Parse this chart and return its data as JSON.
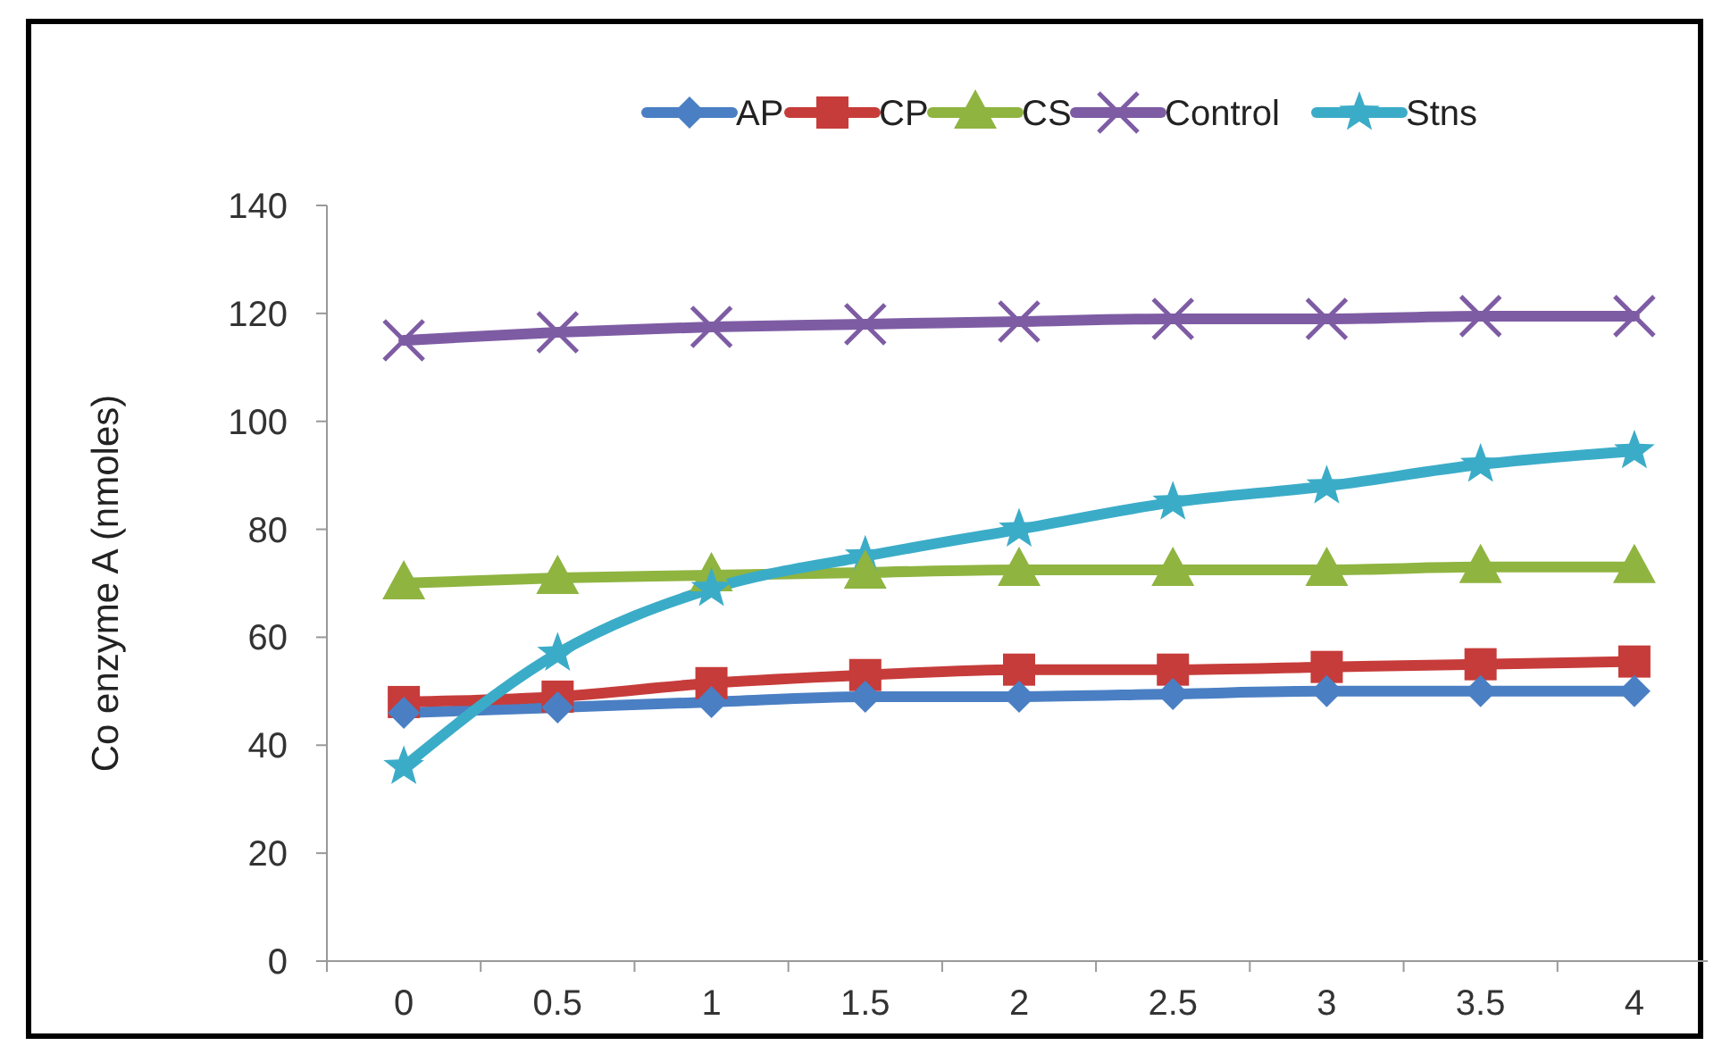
{
  "chart_data": {
    "type": "line",
    "ylabel": "Co enzyme A (nmoles)",
    "categories": [
      "0",
      "0.5",
      "1",
      "1.5",
      "2",
      "2.5",
      "3",
      "3.5",
      "4"
    ],
    "ylim": [
      0,
      140
    ],
    "yticks": [
      0,
      20,
      40,
      60,
      80,
      100,
      120,
      140
    ],
    "grid": false,
    "legend": "top",
    "series": [
      {
        "name": "AP",
        "color": "#4a7fc4",
        "marker": "diamond",
        "values": [
          46,
          47,
          48,
          49,
          49,
          49.5,
          50,
          50,
          50
        ]
      },
      {
        "name": "CP",
        "color": "#c63c3a",
        "marker": "square",
        "values": [
          48,
          49,
          51.5,
          53,
          54,
          54,
          54.5,
          55,
          55.5
        ]
      },
      {
        "name": "CS",
        "color": "#8fb440",
        "marker": "triangle",
        "values": [
          70,
          71,
          71.5,
          72,
          72.5,
          72.5,
          72.5,
          73,
          73
        ]
      },
      {
        "name": "Control",
        "color": "#7e5ca4",
        "marker": "cross",
        "values": [
          115,
          116.5,
          117.5,
          118,
          118.5,
          119,
          119,
          119.5,
          119.5
        ]
      },
      {
        "name": "Stns",
        "color": "#3bacc8",
        "marker": "star",
        "values": [
          36,
          57,
          69,
          75,
          80,
          85,
          88,
          92,
          94.5
        ]
      }
    ]
  }
}
